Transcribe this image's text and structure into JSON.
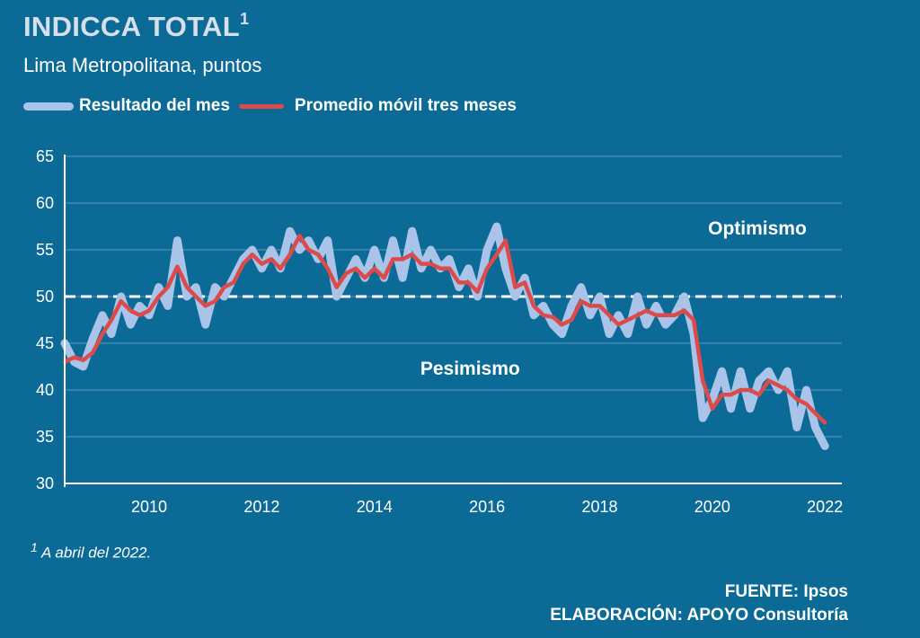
{
  "header": {
    "title": "INDICCA TOTAL",
    "title_sup": "1",
    "subtitle": "Lima Metropolitana, puntos"
  },
  "colors": {
    "background": "#0b6a96",
    "monthly": "#a9c4e8",
    "moving_avg": "#dd4a4a",
    "threshold": "#ffffff"
  },
  "chart_data": {
    "type": "line",
    "title": "INDICCA TOTAL",
    "subtitle": "Lima Metropolitana, puntos",
    "ylim": [
      30,
      65
    ],
    "yticks": [
      30,
      35,
      40,
      45,
      50,
      55,
      60,
      65
    ],
    "xlim": [
      2008.5,
      2022.3
    ],
    "xticks": [
      2010,
      2012,
      2014,
      2016,
      2018,
      2020,
      2022
    ],
    "grid": "horizontal",
    "legend_position": "top-left",
    "threshold": 50,
    "annotations": [
      {
        "text": "Optimismo",
        "x": 2020.8,
        "y": 57
      },
      {
        "text": "Pesimismo",
        "x": 2015.7,
        "y": 42
      }
    ],
    "series": [
      {
        "name": "Resultado del mes",
        "points": [
          [
            2008.5,
            45
          ],
          [
            2008.67,
            43
          ],
          [
            2008.83,
            42.5
          ],
          [
            2009.0,
            45.5
          ],
          [
            2009.17,
            48
          ],
          [
            2009.33,
            46
          ],
          [
            2009.5,
            50
          ],
          [
            2009.67,
            47
          ],
          [
            2009.83,
            49
          ],
          [
            2010.0,
            48
          ],
          [
            2010.17,
            51
          ],
          [
            2010.33,
            49
          ],
          [
            2010.5,
            56
          ],
          [
            2010.67,
            50
          ],
          [
            2010.83,
            51
          ],
          [
            2011.0,
            47
          ],
          [
            2011.17,
            51
          ],
          [
            2011.33,
            50
          ],
          [
            2011.5,
            52
          ],
          [
            2011.67,
            54
          ],
          [
            2011.83,
            55
          ],
          [
            2012.0,
            53
          ],
          [
            2012.17,
            55
          ],
          [
            2012.33,
            53
          ],
          [
            2012.5,
            57
          ],
          [
            2012.67,
            55
          ],
          [
            2012.83,
            56
          ],
          [
            2013.0,
            54
          ],
          [
            2013.17,
            56
          ],
          [
            2013.33,
            50
          ],
          [
            2013.5,
            52
          ],
          [
            2013.67,
            54
          ],
          [
            2013.83,
            52
          ],
          [
            2014.0,
            55
          ],
          [
            2014.17,
            52
          ],
          [
            2014.33,
            56
          ],
          [
            2014.5,
            52
          ],
          [
            2014.67,
            57
          ],
          [
            2014.83,
            53
          ],
          [
            2015.0,
            55
          ],
          [
            2015.17,
            53
          ],
          [
            2015.33,
            54
          ],
          [
            2015.5,
            51
          ],
          [
            2015.67,
            53
          ],
          [
            2015.83,
            50
          ],
          [
            2016.0,
            55
          ],
          [
            2016.17,
            57.5
          ],
          [
            2016.33,
            53
          ],
          [
            2016.5,
            50
          ],
          [
            2016.67,
            52
          ],
          [
            2016.83,
            48
          ],
          [
            2017.0,
            49
          ],
          [
            2017.17,
            47
          ],
          [
            2017.33,
            46
          ],
          [
            2017.5,
            49
          ],
          [
            2017.67,
            51
          ],
          [
            2017.83,
            48
          ],
          [
            2018.0,
            50
          ],
          [
            2018.17,
            46
          ],
          [
            2018.33,
            48
          ],
          [
            2018.5,
            46
          ],
          [
            2018.67,
            50
          ],
          [
            2018.83,
            47
          ],
          [
            2019.0,
            49
          ],
          [
            2019.17,
            47
          ],
          [
            2019.33,
            48
          ],
          [
            2019.5,
            50
          ],
          [
            2019.67,
            46
          ],
          [
            2019.83,
            37
          ],
          [
            2020.0,
            39
          ],
          [
            2020.17,
            42
          ],
          [
            2020.33,
            38
          ],
          [
            2020.5,
            42
          ],
          [
            2020.67,
            38
          ],
          [
            2020.83,
            41
          ],
          [
            2021.0,
            42
          ],
          [
            2021.17,
            40
          ],
          [
            2021.33,
            42
          ],
          [
            2021.5,
            36
          ],
          [
            2021.67,
            40
          ],
          [
            2021.83,
            36
          ],
          [
            2022.0,
            34
          ]
        ]
      },
      {
        "name": "Promedio móvil tres meses",
        "points": [
          [
            2008.5,
            43
          ],
          [
            2008.67,
            43.5
          ],
          [
            2008.83,
            43.2
          ],
          [
            2009.0,
            44
          ],
          [
            2009.17,
            46
          ],
          [
            2009.33,
            47.5
          ],
          [
            2009.5,
            49.5
          ],
          [
            2009.67,
            48.5
          ],
          [
            2009.83,
            48
          ],
          [
            2010.0,
            48.5
          ],
          [
            2010.17,
            50
          ],
          [
            2010.33,
            51
          ],
          [
            2010.5,
            53.2
          ],
          [
            2010.67,
            51
          ],
          [
            2010.83,
            50
          ],
          [
            2011.0,
            49
          ],
          [
            2011.17,
            49.5
          ],
          [
            2011.33,
            51
          ],
          [
            2011.5,
            51.5
          ],
          [
            2011.67,
            53.5
          ],
          [
            2011.83,
            54.5
          ],
          [
            2012.0,
            53.5
          ],
          [
            2012.17,
            54
          ],
          [
            2012.33,
            53
          ],
          [
            2012.5,
            54.5
          ],
          [
            2012.67,
            56.5
          ],
          [
            2012.83,
            55
          ],
          [
            2013.0,
            54.5
          ],
          [
            2013.17,
            53
          ],
          [
            2013.33,
            51
          ],
          [
            2013.5,
            52.5
          ],
          [
            2013.67,
            53
          ],
          [
            2013.83,
            52
          ],
          [
            2014.0,
            53
          ],
          [
            2014.17,
            52
          ],
          [
            2014.33,
            54
          ],
          [
            2014.5,
            54
          ],
          [
            2014.67,
            54.5
          ],
          [
            2014.83,
            53.5
          ],
          [
            2015.0,
            53.5
          ],
          [
            2015.17,
            53
          ],
          [
            2015.33,
            53
          ],
          [
            2015.5,
            51.5
          ],
          [
            2015.67,
            51.5
          ],
          [
            2015.83,
            50.5
          ],
          [
            2016.0,
            53
          ],
          [
            2016.17,
            54.5
          ],
          [
            2016.33,
            56
          ],
          [
            2016.5,
            51
          ],
          [
            2016.67,
            51.5
          ],
          [
            2016.83,
            49
          ],
          [
            2017.0,
            48
          ],
          [
            2017.17,
            47.8
          ],
          [
            2017.33,
            47
          ],
          [
            2017.5,
            47.5
          ],
          [
            2017.67,
            49.5
          ],
          [
            2017.83,
            49
          ],
          [
            2018.0,
            49
          ],
          [
            2018.17,
            48
          ],
          [
            2018.33,
            47
          ],
          [
            2018.5,
            47.5
          ],
          [
            2018.67,
            48
          ],
          [
            2018.83,
            48.5
          ],
          [
            2019.0,
            48
          ],
          [
            2019.17,
            48
          ],
          [
            2019.33,
            48
          ],
          [
            2019.5,
            48.5
          ],
          [
            2019.67,
            47.5
          ],
          [
            2019.83,
            41
          ],
          [
            2020.0,
            38
          ],
          [
            2020.17,
            39.5
          ],
          [
            2020.33,
            39.5
          ],
          [
            2020.5,
            40
          ],
          [
            2020.67,
            40
          ],
          [
            2020.83,
            39.5
          ],
          [
            2021.0,
            41
          ],
          [
            2021.17,
            40.5
          ],
          [
            2021.33,
            40
          ],
          [
            2021.5,
            39
          ],
          [
            2021.67,
            38.5
          ],
          [
            2021.83,
            37.5
          ],
          [
            2022.0,
            36.5
          ]
        ]
      }
    ]
  },
  "footer": {
    "footnote_sup": "1",
    "footnote_text": "A abril del 2022.",
    "source": "FUENTE: Ipsos",
    "elaboration": "ELABORACIÓN: APOYO Consultoría"
  }
}
